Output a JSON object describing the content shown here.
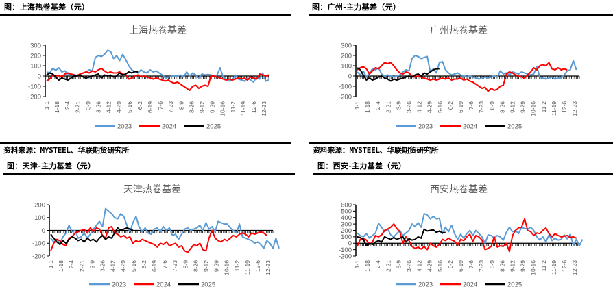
{
  "page": {
    "source_text": "资料来源：MYSTEEL、华联期货研究所"
  },
  "colors": {
    "2023": "#5B9BD5",
    "2024": "#FF0000",
    "2025": "#000000",
    "axis": "#000000",
    "text": "#595959"
  },
  "panels": [
    {
      "fig_title": "图：上海热卷基差（元）",
      "chart_title": "上海热卷基差"
    },
    {
      "fig_title": "图：广州-主力基差（元）",
      "chart_title": "广州热卷基差"
    },
    {
      "fig_title": "图：天津-主力基差（元）",
      "chart_title": "天津热卷基差"
    },
    {
      "fig_title": "图：西安-主力基差（元）",
      "chart_title": "西安热卷基差"
    }
  ],
  "chart_data": [
    {
      "type": "line",
      "title": "上海热卷基差",
      "xlabel": "",
      "ylabel": "",
      "ylim": [
        -200,
        300
      ],
      "yticks": [
        300,
        200,
        100,
        0,
        -100,
        -200
      ],
      "categories": [
        "1-1",
        "1-18",
        "2-4",
        "2-21",
        "3-9",
        "3-26",
        "4-12",
        "4-29",
        "5-16",
        "6-2",
        "6-19",
        "7-6",
        "7-23",
        "8-9",
        "8-26",
        "9-12",
        "9-29",
        "10-16",
        "11-2",
        "11-19",
        "12-6",
        "12-23"
      ],
      "legend": [
        "2023",
        "2024",
        "2025"
      ],
      "legend_position": "bottom",
      "grid": false,
      "series": [
        {
          "name": "2023",
          "values": [
            40,
            30,
            75,
            55,
            80,
            40,
            50,
            20,
            10,
            15,
            5,
            20,
            30,
            40,
            60,
            50,
            180,
            200,
            190,
            210,
            250,
            240,
            170,
            200,
            150,
            210,
            160,
            100,
            60,
            40,
            30,
            60,
            40,
            30,
            60,
            40,
            50,
            30,
            10,
            -20,
            -10,
            -5,
            0,
            0,
            10,
            -10,
            40,
            0,
            30,
            10,
            -20,
            20,
            10,
            15,
            10,
            0,
            10,
            80,
            -10,
            -30,
            -50,
            -40,
            10,
            -30,
            -40,
            -50,
            -20,
            -40,
            -60,
            -10,
            -30,
            30,
            -50,
            -40
          ]
        },
        {
          "name": "2024",
          "values": [
            -50,
            -30,
            10,
            0,
            5,
            -10,
            20,
            30,
            20,
            10,
            5,
            20,
            30,
            40,
            30,
            50,
            40,
            60,
            75,
            50,
            30,
            40,
            30,
            30,
            40,
            20,
            10,
            -30,
            -20,
            0,
            10,
            -10,
            0,
            -10,
            -20,
            -30,
            -20,
            -30,
            -40,
            -50,
            -40,
            -60,
            -70,
            -60,
            -80,
            -100,
            -120,
            -140,
            -100,
            -90,
            -120,
            -100,
            -90,
            -100,
            0,
            0,
            -10,
            -20,
            -30,
            -40,
            -30,
            -40,
            -30,
            -20,
            -30,
            -20,
            -40,
            -10,
            -20,
            -30,
            20,
            10,
            0,
            10
          ]
        },
        {
          "name": "2025",
          "values": [
            10,
            30,
            20,
            -10,
            -40,
            -20,
            -30,
            -40,
            -20,
            0,
            0,
            10,
            -10,
            -20,
            -10,
            0,
            10,
            20,
            -20,
            10,
            0,
            10,
            -10,
            0,
            30,
            10,
            20,
            40,
            30,
            45,
            40
          ]
        }
      ]
    },
    {
      "type": "line",
      "title": "广州热卷基差",
      "xlabel": "",
      "ylabel": "",
      "ylim": [
        -200,
        300
      ],
      "yticks": [
        300,
        200,
        100,
        0,
        -100,
        -200
      ],
      "categories": [
        "1-1",
        "1-18",
        "2-4",
        "2-21",
        "3-9",
        "3-26",
        "4-12",
        "4-29",
        "5-16",
        "6-2",
        "6-19",
        "7-6",
        "7-23",
        "8-9",
        "8-26",
        "9-12",
        "9-29",
        "10-16",
        "11-2",
        "11-19",
        "12-6",
        "12-23"
      ],
      "legend": [
        "2023",
        "2024",
        "2025"
      ],
      "legend_position": "bottom",
      "grid": false,
      "series": [
        {
          "name": "2023",
          "values": [
            40,
            10,
            50,
            -10,
            30,
            70,
            60,
            80,
            20,
            0,
            10,
            0,
            -10,
            0,
            10,
            40,
            60,
            50,
            170,
            200,
            190,
            170,
            180,
            190,
            40,
            70,
            30,
            130,
            140,
            60,
            30,
            10,
            20,
            30,
            10,
            0,
            -10,
            0,
            -10,
            -20,
            -30,
            -20,
            -10,
            -20,
            -10,
            0,
            -10,
            50,
            20,
            30,
            10,
            40,
            30,
            20,
            40,
            30,
            20,
            10,
            20,
            90,
            -10,
            -20,
            -30,
            -20,
            -10,
            -30,
            -20,
            -20,
            10,
            50,
            60,
            150,
            60
          ]
        },
        {
          "name": "2024",
          "values": [
            60,
            80,
            90,
            70,
            20,
            50,
            80,
            70,
            100,
            130,
            120,
            130,
            100,
            60,
            30,
            20,
            40,
            30,
            0,
            -10,
            0,
            -10,
            -20,
            -30,
            -40,
            -30,
            -40,
            -30,
            -20,
            -30,
            -20,
            -40,
            -30,
            -30,
            -20,
            -40,
            -30,
            -50,
            -60,
            -80,
            -100,
            -120,
            -110,
            -150,
            -120,
            -140,
            -130,
            -100,
            -90,
            20,
            40,
            30,
            10,
            0,
            -10,
            -20,
            10,
            40,
            80,
            60,
            100,
            110,
            100,
            130,
            70,
            60,
            80,
            60,
            70,
            60
          ]
        },
        {
          "name": "2025",
          "values": [
            80,
            60,
            10,
            -40,
            -20,
            -40,
            -30,
            -10,
            0,
            -20,
            -30,
            -50,
            -30,
            -40,
            -30,
            -20,
            -10,
            0,
            -10,
            10,
            20,
            0,
            30,
            20,
            40,
            60,
            70,
            70
          ]
        }
      ]
    },
    {
      "type": "line",
      "title": "天津热卷基差",
      "xlabel": "",
      "ylabel": "",
      "ylim": [
        -200,
        200
      ],
      "yticks": [
        200,
        100,
        0,
        -100,
        -200
      ],
      "categories": [
        "1-1",
        "1-18",
        "2-4",
        "2-21",
        "3-9",
        "3-26",
        "4-12",
        "4-29",
        "5-16",
        "6-2",
        "6-19",
        "7-6",
        "7-23",
        "8-9",
        "8-26",
        "9-12",
        "9-29",
        "10-16",
        "11-2",
        "11-19",
        "12-6",
        "12-23"
      ],
      "legend": [
        "2023",
        "2024",
        "2025"
      ],
      "legend_position": "bottom",
      "grid": false,
      "series": [
        {
          "name": "2023",
          "values": [
            -60,
            -90,
            -70,
            -100,
            -50,
            -20,
            40,
            -10,
            0,
            -60,
            -50,
            -20,
            -60,
            -30,
            10,
            40,
            70,
            30,
            170,
            150,
            130,
            100,
            90,
            130,
            110,
            40,
            -10,
            60,
            110,
            30,
            -10,
            20,
            -20,
            -30,
            10,
            20,
            -10,
            30,
            0,
            20,
            -40,
            -30,
            -70,
            -30,
            10,
            20,
            0,
            10,
            20,
            40,
            0,
            60,
            10,
            30,
            -10,
            70,
            60,
            50,
            50,
            20,
            0,
            -20,
            50,
            -50,
            -60,
            -70,
            -80,
            -100,
            -90,
            -110,
            -140,
            -80,
            -100,
            -140,
            -60,
            -140
          ]
        },
        {
          "name": "2024",
          "values": [
            -160,
            -100,
            -70,
            -80,
            -110,
            -120,
            -60,
            -50,
            -20,
            -10,
            0,
            10,
            -20,
            20,
            -10,
            20,
            10,
            -40,
            -60,
            20,
            30,
            -20,
            -30,
            -50,
            -40,
            -60,
            -50,
            -100,
            -80,
            -90,
            -70,
            -80,
            -90,
            -100,
            -110,
            -130,
            -100,
            -110,
            -90,
            -120,
            -110,
            -100,
            -130,
            -120,
            -160,
            -170,
            -140,
            -110,
            -120,
            -100,
            -150,
            -160,
            -60,
            0,
            -60,
            -80,
            -90,
            -70,
            -80,
            -60,
            -40,
            -50,
            -30,
            -20,
            -30,
            -50,
            -20,
            -30,
            -20,
            -10,
            -20,
            -40
          ]
        },
        {
          "name": "2025",
          "values": [
            -30,
            -60,
            -90,
            -110,
            -80,
            -100,
            -70,
            -50,
            -60,
            -80,
            -70,
            -90,
            -60,
            -80,
            -70,
            -90,
            -60,
            -40,
            -70,
            -50,
            -60,
            -20,
            20,
            0,
            10,
            20,
            10,
            0
          ]
        }
      ]
    },
    {
      "type": "line",
      "title": "西安热卷基差",
      "xlabel": "",
      "ylabel": "",
      "ylim": [
        -200,
        600
      ],
      "yticks": [
        600,
        500,
        400,
        300,
        200,
        100,
        0,
        -100,
        -200
      ],
      "categories": [
        "1-1",
        "1-18",
        "2-4",
        "2-21",
        "3-9",
        "3-26",
        "4-12",
        "4-29",
        "5-16",
        "6-2",
        "6-19",
        "7-6",
        "7-23",
        "8-9",
        "8-26",
        "9-12",
        "9-29",
        "10-16",
        "11-2",
        "11-19",
        "12-6",
        "12-23"
      ],
      "legend": [
        "2023",
        "2024",
        "2025"
      ],
      "legend_position": "bottom",
      "grid": false,
      "series": [
        {
          "name": "2023",
          "values": [
            160,
            120,
            100,
            150,
            80,
            120,
            160,
            310,
            250,
            180,
            220,
            130,
            100,
            150,
            200,
            120,
            160,
            200,
            300,
            260,
            320,
            250,
            460,
            440,
            380,
            420,
            380,
            390,
            150,
            250,
            180,
            280,
            150,
            60,
            140,
            80,
            150,
            200,
            120,
            200,
            150,
            100,
            0,
            130,
            120,
            80,
            120,
            100,
            50,
            170,
            250,
            180,
            200,
            150,
            250,
            230,
            220,
            250,
            200,
            100,
            50,
            100,
            20,
            130,
            40,
            80,
            50,
            60,
            130,
            70,
            140,
            -30,
            60,
            -40,
            60
          ]
        },
        {
          "name": "2024",
          "values": [
            -50,
            60,
            80,
            50,
            -20,
            20,
            120,
            100,
            130,
            200,
            220,
            250,
            300,
            230,
            180,
            0,
            100,
            40,
            -50,
            -80,
            -60,
            -90,
            -50,
            -100,
            0,
            -40,
            -60,
            -20,
            60,
            40,
            80,
            50,
            30,
            -30,
            60,
            40,
            100,
            140,
            30,
            120,
            100,
            50,
            -100,
            -80,
            -50,
            100,
            -60,
            -40,
            -50,
            0,
            -130,
            120,
            200,
            240,
            250,
            380,
            200,
            180,
            120,
            160,
            150,
            200,
            240,
            150,
            100,
            150,
            120,
            100,
            110,
            120,
            90,
            100,
            80
          ]
        },
        {
          "name": "2025",
          "values": [
            100,
            90,
            60,
            -40,
            0,
            -20,
            20,
            40,
            20,
            100,
            80,
            60,
            90,
            60,
            80,
            100,
            20,
            70,
            50,
            60,
            100,
            80,
            220,
            190,
            200,
            210,
            170,
            190,
            160,
            170
          ]
        }
      ]
    }
  ]
}
